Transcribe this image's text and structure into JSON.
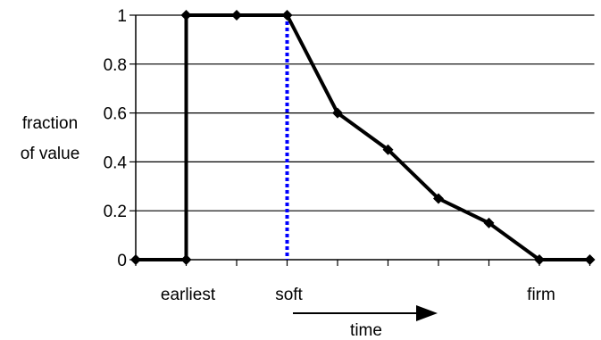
{
  "chart_data": {
    "type": "line",
    "ylabel_lines": [
      "fraction",
      "of value"
    ],
    "xlabel": "time",
    "ylim": [
      0,
      1
    ],
    "yticks": [
      0,
      0.2,
      0.4,
      0.6,
      0.8,
      1
    ],
    "ytick_labels": [
      "0",
      "0.2",
      "0.4",
      "0.6",
      "0.8",
      "1"
    ],
    "x_slots": 10,
    "category_labels": [
      {
        "slot": 1,
        "text": "earliest"
      },
      {
        "slot": 3,
        "text": "soft"
      },
      {
        "slot": 8,
        "text": "firm"
      }
    ],
    "series": [
      {
        "color": "#000000",
        "points": [
          {
            "x": 0,
            "y": 0
          },
          {
            "x": 1,
            "y": 0
          },
          {
            "x": 1,
            "y": 1
          },
          {
            "x": 2,
            "y": 1
          },
          {
            "x": 3,
            "y": 1
          },
          {
            "x": 4,
            "y": 0.6
          },
          {
            "x": 5,
            "y": 0.45
          },
          {
            "x": 6,
            "y": 0.25
          },
          {
            "x": 7,
            "y": 0.15
          },
          {
            "x": 8,
            "y": 0
          },
          {
            "x": 9,
            "y": 0
          }
        ]
      }
    ],
    "marker_line": {
      "x": 3,
      "color": "#0000ff",
      "style": "dotted"
    },
    "grid": true
  }
}
